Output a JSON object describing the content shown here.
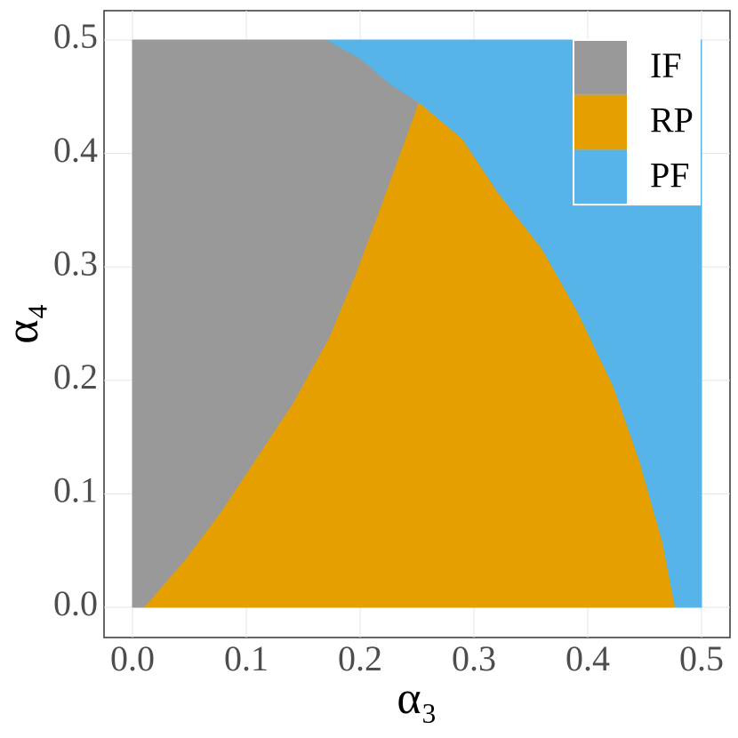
{
  "chart_data": {
    "type": "region",
    "xlabel": "α₃",
    "ylabel": "α₄",
    "xlim": [
      0,
      0.5
    ],
    "ylim": [
      0,
      0.5
    ],
    "xticks": [
      {
        "value": 0,
        "label": "0.0"
      },
      0.1,
      0.2,
      0.3,
      0.4,
      0.5
    ],
    "yticks": [
      {
        "value": 0,
        "label": "0.0"
      },
      0.1,
      0.2,
      0.3,
      0.4,
      0.5
    ],
    "grid": true,
    "legend": "top-right",
    "series": [
      {
        "name": "IF",
        "color": "#999999",
        "x": [
          0,
          0.011,
          0.047,
          0.079,
          0.11,
          0.141,
          0.173,
          0.196,
          0.219,
          0.239,
          0.252,
          0.227,
          0.2,
          0.171,
          0
        ],
        "values": [
          0,
          0,
          0.042,
          0.085,
          0.132,
          0.179,
          0.237,
          0.292,
          0.354,
          0.409,
          0.445,
          0.461,
          0.484,
          0.5,
          0.5
        ]
      },
      {
        "name": "RP",
        "color": "#E69F00",
        "x": [
          0.011,
          0.047,
          0.079,
          0.11,
          0.141,
          0.173,
          0.196,
          0.219,
          0.239,
          0.252,
          0.29,
          0.321,
          0.36,
          0.391,
          0.423,
          0.446,
          0.466,
          0.477
        ],
        "values": [
          0,
          0.042,
          0.085,
          0.132,
          0.179,
          0.237,
          0.292,
          0.354,
          0.409,
          0.445,
          0.413,
          0.366,
          0.316,
          0.261,
          0.194,
          0.128,
          0.057,
          0
        ]
      },
      {
        "name": "PF",
        "color": "#56B4E9",
        "x": [
          0.171,
          0.2,
          0.227,
          0.252,
          0.29,
          0.321,
          0.36,
          0.391,
          0.423,
          0.446,
          0.466,
          0.477,
          0.5,
          0.5
        ],
        "values": [
          0.5,
          0.484,
          0.461,
          0.445,
          0.413,
          0.366,
          0.316,
          0.261,
          0.194,
          0.128,
          0.057,
          0,
          0,
          0.5
        ]
      }
    ]
  }
}
